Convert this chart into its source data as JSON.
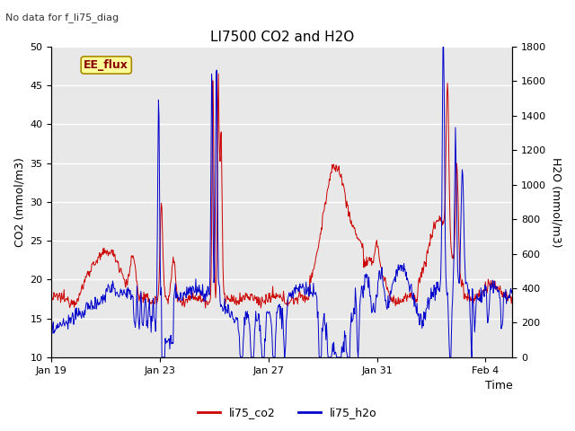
{
  "title": "LI7500 CO2 and H2O",
  "top_left_text": "No data for f_li75_diag",
  "xlabel": "Time",
  "ylabel_left": "CO2 (mmol/m3)",
  "ylabel_right": "H2O (mmol/m3)",
  "xlim_start": 0,
  "xlim_end": 17,
  "ylim_left": [
    10,
    50
  ],
  "ylim_right": [
    0,
    1800
  ],
  "xtick_labels": [
    "Jan 19",
    "Jan 23",
    "Jan 27",
    "Jan 31",
    "Feb 4"
  ],
  "xtick_positions": [
    0,
    4,
    8,
    12,
    16
  ],
  "yticks_left": [
    10,
    15,
    20,
    25,
    30,
    35,
    40,
    45,
    50
  ],
  "yticks_right": [
    0,
    200,
    400,
    600,
    800,
    1000,
    1200,
    1400,
    1600,
    1800
  ],
  "legend_entries": [
    "li75_co2",
    "li75_h2o"
  ],
  "legend_colors": [
    "#cc0000",
    "#0000cc"
  ],
  "bg_color": "#e8e8e8",
  "annotation_box_text": "EE_flux",
  "annotation_box_color": "#ffff99",
  "annotation_box_edge": "#aa8800",
  "annotation_box_text_color": "#880000",
  "line_color_co2": "#cc0000",
  "line_color_h2o": "#0000cc",
  "line_width": 0.7,
  "grid_color": "#ffffff",
  "grid_linewidth": 1.0
}
